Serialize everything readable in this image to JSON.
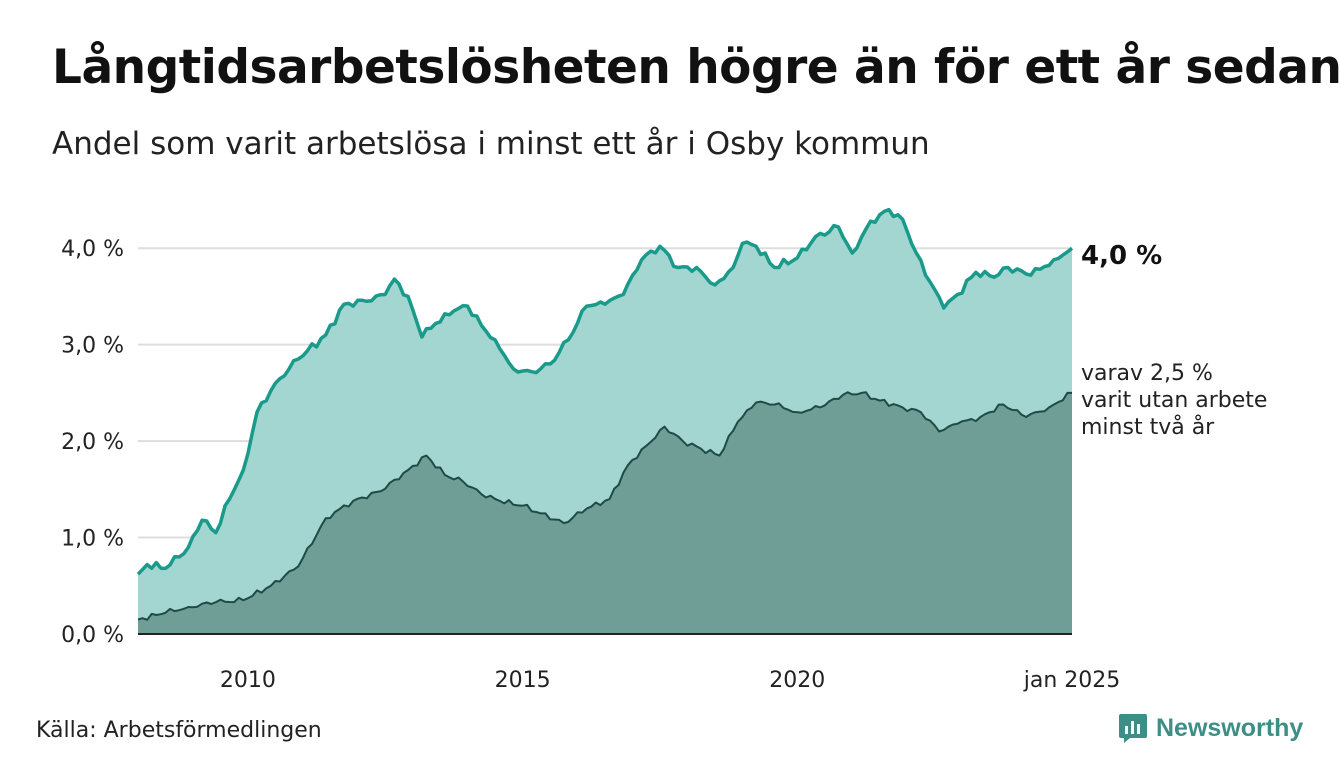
{
  "title": "Långtidsarbetslösheten högre än för ett år sedan",
  "subtitle": "Andel som varit arbetslösa i minst ett år i Osby kommun",
  "source": "Källa: Arbetsförmedlingen",
  "brand": {
    "name": "Newsworthy",
    "icon": "bar-chart-logo-icon",
    "color": "#3d8e86"
  },
  "colors": {
    "upper_line": "#1a9a8a",
    "upper_fill": "#a3d6d0",
    "lower_line": "#1f4a45",
    "lower_fill": "#6f9e97",
    "grid": "#dddddd"
  },
  "callouts": {
    "main": "4,0 %",
    "sub": [
      "varav 2,5 %",
      "varit utan arbete",
      "minst två år"
    ]
  },
  "chart_data": {
    "type": "area",
    "x_start": "2008-01",
    "x_end": "2025-01",
    "x_step": "month",
    "xticks": [
      {
        "x": "2010-01",
        "label": "2010"
      },
      {
        "x": "2015-01",
        "label": "2015"
      },
      {
        "x": "2020-01",
        "label": "2020"
      },
      {
        "x": "2025-01",
        "label": "jan 2025"
      }
    ],
    "yticks": [
      {
        "y": 0,
        "label": "0,0 %"
      },
      {
        "y": 1,
        "label": "1,0 %"
      },
      {
        "y": 2,
        "label": "2,0 %"
      },
      {
        "y": 3,
        "label": "3,0 %"
      },
      {
        "y": 4,
        "label": "4,0 %"
      }
    ],
    "ylim": [
      0,
      4.5
    ],
    "grid": "horizontal",
    "series": [
      {
        "keyframes": [
          [
            "2008-01",
            0.62
          ],
          [
            "2008-03",
            0.72
          ],
          [
            "2008-07",
            0.68
          ],
          [
            "2008-12",
            0.9
          ],
          [
            "2009-03",
            1.18
          ],
          [
            "2009-06",
            1.05
          ],
          [
            "2009-09",
            1.4
          ],
          [
            "2009-12",
            1.7
          ],
          [
            "2010-03",
            2.3
          ],
          [
            "2010-07",
            2.6
          ],
          [
            "2010-12",
            2.85
          ],
          [
            "2011-06",
            3.1
          ],
          [
            "2011-10",
            3.42
          ],
          [
            "2012-03",
            3.45
          ],
          [
            "2012-07",
            3.52
          ],
          [
            "2012-09",
            3.68
          ],
          [
            "2012-12",
            3.5
          ],
          [
            "2013-03",
            3.08
          ],
          [
            "2013-06",
            3.22
          ],
          [
            "2013-10",
            3.35
          ],
          [
            "2014-01",
            3.4
          ],
          [
            "2014-04",
            3.2
          ],
          [
            "2014-07",
            3.05
          ],
          [
            "2014-11",
            2.75
          ],
          [
            "2015-03",
            2.72
          ],
          [
            "2015-07",
            2.8
          ],
          [
            "2015-11",
            3.05
          ],
          [
            "2016-03",
            3.4
          ],
          [
            "2016-07",
            3.42
          ],
          [
            "2016-11",
            3.52
          ],
          [
            "2017-03",
            3.88
          ],
          [
            "2017-07",
            4.02
          ],
          [
            "2017-11",
            3.8
          ],
          [
            "2018-03",
            3.8
          ],
          [
            "2018-07",
            3.62
          ],
          [
            "2018-11",
            3.8
          ],
          [
            "2019-01",
            4.05
          ],
          [
            "2019-04",
            4.02
          ],
          [
            "2019-08",
            3.8
          ],
          [
            "2020-01",
            3.9
          ],
          [
            "2020-05",
            4.12
          ],
          [
            "2020-10",
            4.22
          ],
          [
            "2021-01",
            3.95
          ],
          [
            "2021-05",
            4.28
          ],
          [
            "2021-09",
            4.4
          ],
          [
            "2021-12",
            4.3
          ],
          [
            "2022-03",
            3.95
          ],
          [
            "2022-06",
            3.65
          ],
          [
            "2022-09",
            3.38
          ],
          [
            "2022-12",
            3.52
          ],
          [
            "2023-04",
            3.75
          ],
          [
            "2023-08",
            3.7
          ],
          [
            "2023-11",
            3.8
          ],
          [
            "2024-04",
            3.72
          ],
          [
            "2024-09",
            3.88
          ],
          [
            "2025-01",
            4.0
          ]
        ]
      },
      {
        "keyframes": [
          [
            "2008-01",
            0.15
          ],
          [
            "2008-07",
            0.22
          ],
          [
            "2008-12",
            0.28
          ],
          [
            "2009-06",
            0.33
          ],
          [
            "2009-12",
            0.35
          ],
          [
            "2010-06",
            0.5
          ],
          [
            "2010-12",
            0.7
          ],
          [
            "2011-06",
            1.2
          ],
          [
            "2011-12",
            1.38
          ],
          [
            "2012-06",
            1.48
          ],
          [
            "2012-12",
            1.7
          ],
          [
            "2013-04",
            1.85
          ],
          [
            "2013-08",
            1.65
          ],
          [
            "2013-12",
            1.58
          ],
          [
            "2014-04",
            1.45
          ],
          [
            "2014-08",
            1.38
          ],
          [
            "2015-01",
            1.33
          ],
          [
            "2015-05",
            1.25
          ],
          [
            "2015-10",
            1.15
          ],
          [
            "2016-03",
            1.3
          ],
          [
            "2016-08",
            1.4
          ],
          [
            "2016-12",
            1.75
          ],
          [
            "2017-04",
            1.95
          ],
          [
            "2017-08",
            2.15
          ],
          [
            "2017-12",
            2.0
          ],
          [
            "2018-04",
            1.92
          ],
          [
            "2018-08",
            1.85
          ],
          [
            "2018-12",
            2.2
          ],
          [
            "2019-04",
            2.4
          ],
          [
            "2019-08",
            2.38
          ],
          [
            "2020-01",
            2.3
          ],
          [
            "2020-06",
            2.35
          ],
          [
            "2020-11",
            2.48
          ],
          [
            "2021-03",
            2.5
          ],
          [
            "2021-07",
            2.42
          ],
          [
            "2021-12",
            2.35
          ],
          [
            "2022-04",
            2.3
          ],
          [
            "2022-08",
            2.1
          ],
          [
            "2022-12",
            2.18
          ],
          [
            "2023-05",
            2.25
          ],
          [
            "2023-10",
            2.38
          ],
          [
            "2024-03",
            2.25
          ],
          [
            "2024-08",
            2.35
          ],
          [
            "2025-01",
            2.5
          ]
        ]
      }
    ]
  }
}
